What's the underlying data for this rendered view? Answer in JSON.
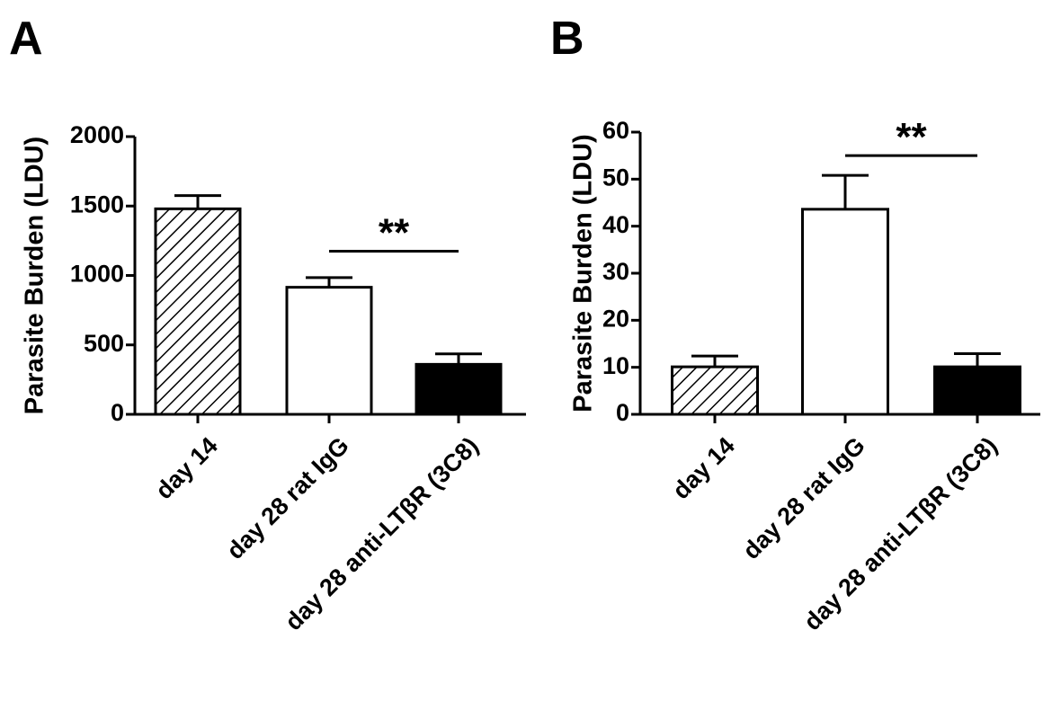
{
  "chart_data": [
    {
      "type": "bar",
      "panel_label": "A",
      "ylabel": "Parasite Burden  (LDU)",
      "categories": [
        "day 14",
        "day 28 rat IgG",
        "day 28 anti-LTβR (3C8)"
      ],
      "values": [
        1480,
        915,
        360
      ],
      "errors": [
        95,
        70,
        75
      ],
      "fills": [
        "hatched",
        "white",
        "black"
      ],
      "ylim": [
        0,
        2000
      ],
      "yticks": [
        0,
        500,
        1000,
        1500,
        2000
      ],
      "grid": false,
      "significance": {
        "label": "**",
        "from_index": 1,
        "to_index": 2,
        "y": 1175
      }
    },
    {
      "type": "bar",
      "panel_label": "B",
      "ylabel": "Parasite Burden (LDU)",
      "categories": [
        "day 14",
        "day 28 rat IgG",
        "day 28 anti-LTβR (3C8)"
      ],
      "values": [
        10.1,
        43.6,
        10.1
      ],
      "errors": [
        2.3,
        7.2,
        2.8
      ],
      "fills": [
        "hatched",
        "white",
        "black"
      ],
      "ylim": [
        0,
        60
      ],
      "yticks": [
        0,
        10,
        20,
        30,
        40,
        50,
        60
      ],
      "grid": false,
      "significance": {
        "label": "**",
        "from_index": 1,
        "to_index": 2,
        "y": 55
      }
    }
  ]
}
